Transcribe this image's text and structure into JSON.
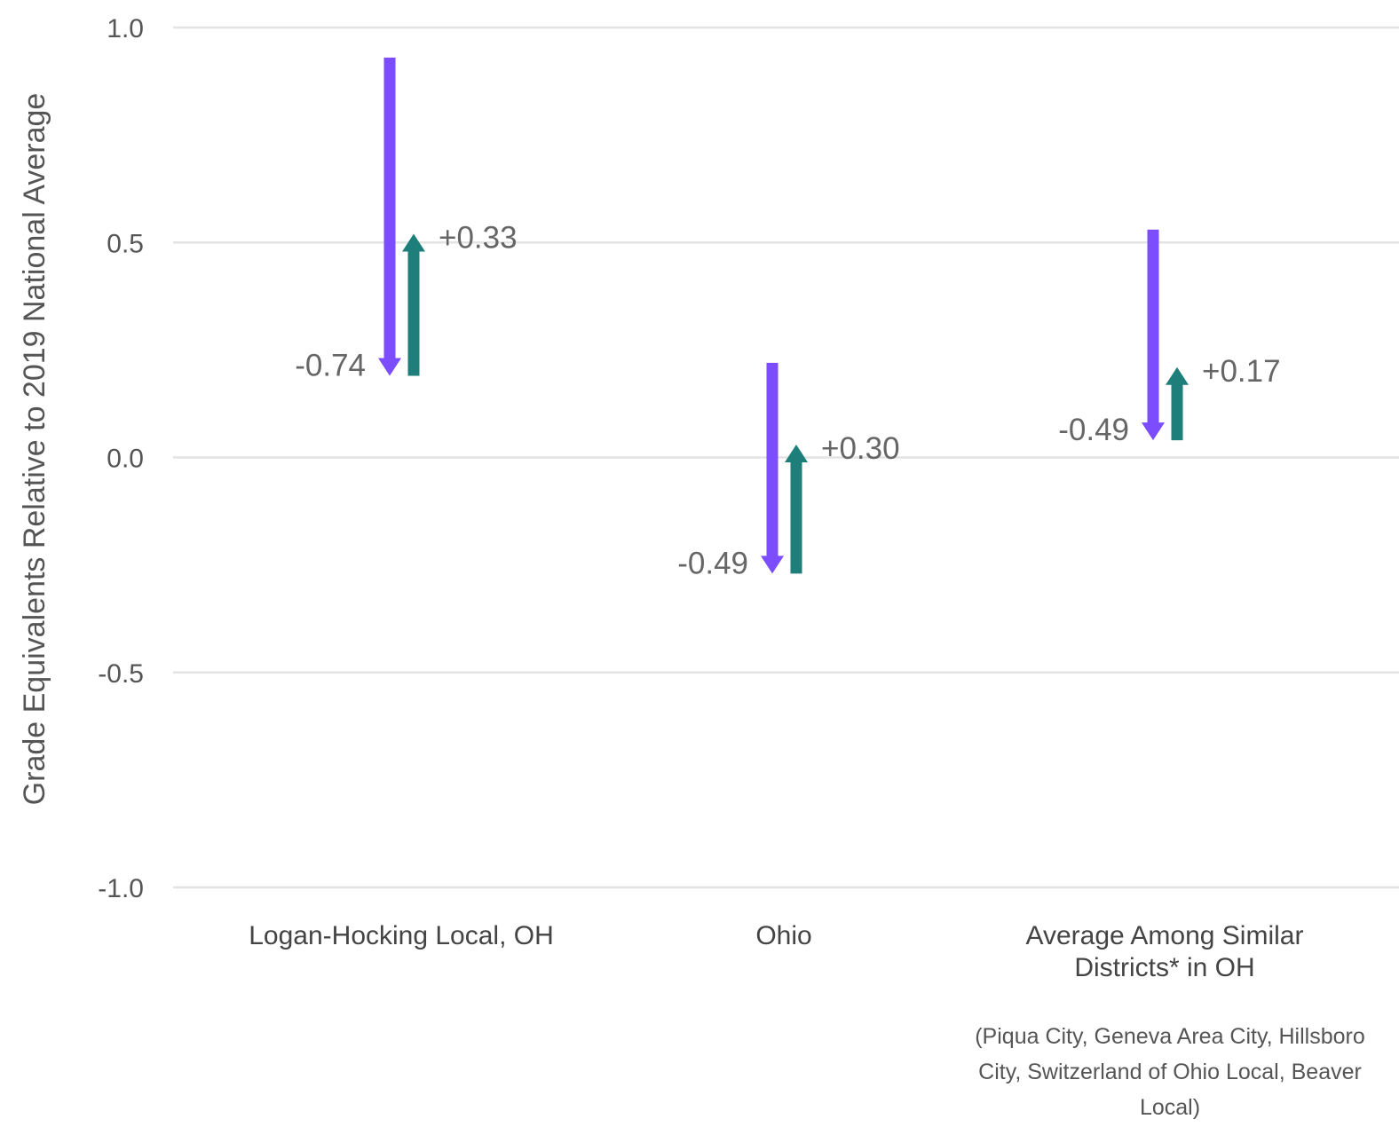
{
  "chart_data": {
    "type": "arrow",
    "ylabel": "Grade Equivalents Relative to 2019 National Average",
    "ylim": [
      -1.0,
      1.0
    ],
    "yticks": [
      {
        "value": 1.0,
        "label": "1.0"
      },
      {
        "value": 0.5,
        "label": "0.5"
      },
      {
        "value": 0.0,
        "label": "0.0"
      },
      {
        "value": -0.5,
        "label": "-0.5"
      },
      {
        "value": -1.0,
        "label": "-1.0"
      }
    ],
    "grid": true,
    "colors": {
      "decline": "#7B4DFF",
      "recovery": "#1E7F7A"
    },
    "categories": [
      {
        "label_lines": [
          "Logan-Hocking Local, OH"
        ],
        "note_lines": [],
        "decline": {
          "start": 0.93,
          "end": 0.19,
          "label": "-0.74"
        },
        "recovery": {
          "start": 0.19,
          "end": 0.52,
          "label": "+0.33"
        }
      },
      {
        "label_lines": [
          "Ohio"
        ],
        "note_lines": [],
        "decline": {
          "start": 0.22,
          "end": -0.27,
          "label": "-0.49"
        },
        "recovery": {
          "start": -0.27,
          "end": 0.03,
          "label": "+0.30"
        }
      },
      {
        "label_lines": [
          "Average Among Similar",
          "Districts* in OH"
        ],
        "note_lines": [
          "(Piqua City, Geneva Area City, Hillsboro",
          "City, Switzerland of Ohio Local, Beaver",
          "Local)"
        ],
        "decline": {
          "start": 0.53,
          "end": 0.04,
          "label": "-0.49"
        },
        "recovery": {
          "start": 0.04,
          "end": 0.21,
          "label": "+0.17"
        }
      }
    ]
  }
}
